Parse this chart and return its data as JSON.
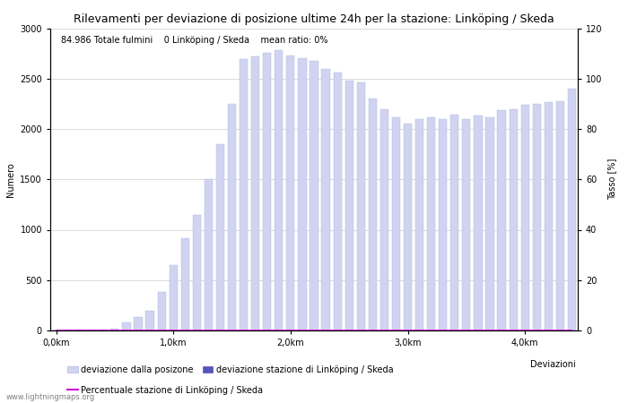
{
  "title": "Rilevamenti per deviazione di posizione ultime 24h per la stazione: Linköping / Skeda",
  "ylabel_left": "Numero",
  "ylabel_right": "Tasso [%]",
  "annotation": "84.986 Totale fulmini    0 Linköping / Skeda    mean ratio: 0%",
  "xlim_min": -0.5,
  "xlim_max": 44.5,
  "ylim_left": [
    0,
    3000
  ],
  "ylim_right": [
    0,
    120
  ],
  "xtick_labels": [
    "0,0km",
    "1,0km",
    "2,0km",
    "3,0km",
    "4,0km"
  ],
  "xtick_positions": [
    0,
    10,
    20,
    30,
    40
  ],
  "ytick_left": [
    0,
    500,
    1000,
    1500,
    2000,
    2500,
    3000
  ],
  "ytick_right": [
    0,
    20,
    40,
    60,
    80,
    100,
    120
  ],
  "bar_color": "#d0d4f0",
  "bar_edge_color": "#b0b8e0",
  "station_bar_color": "#5555bb",
  "line_color": "#cc00cc",
  "background_color": "#ffffff",
  "grid_color": "#cccccc",
  "bar_values": [
    3,
    5,
    6,
    8,
    12,
    20,
    80,
    130,
    200,
    380,
    650,
    920,
    1150,
    1500,
    1850,
    2250,
    2690,
    2720,
    2760,
    2780,
    2730,
    2700,
    2680,
    2600,
    2560,
    2480,
    2460,
    2300,
    2200,
    2120,
    2050,
    2100,
    2120,
    2100,
    2140,
    2100,
    2130,
    2120,
    2190,
    2200,
    2240,
    2250,
    2270,
    2280,
    2400
  ],
  "station_values": [
    0,
    0,
    0,
    0,
    0,
    0,
    0,
    0,
    0,
    0,
    0,
    0,
    0,
    0,
    0,
    0,
    0,
    0,
    0,
    0,
    0,
    0,
    0,
    0,
    0,
    0,
    0,
    0,
    0,
    0,
    0,
    0,
    0,
    0,
    0,
    0,
    0,
    0,
    0,
    0,
    0,
    0,
    0,
    0,
    0
  ],
  "ratio_values": [
    0,
    0,
    0,
    0,
    0,
    0,
    0,
    0,
    0,
    0,
    0,
    0,
    0,
    0,
    0,
    0,
    0,
    0,
    0,
    0,
    0,
    0,
    0,
    0,
    0,
    0,
    0,
    0,
    0,
    0,
    0,
    0,
    0,
    0,
    0,
    0,
    0,
    0,
    0,
    0,
    0,
    0,
    0,
    0,
    0
  ],
  "legend_label_total": "deviazione dalla posizone",
  "legend_label_station": "deviazione stazione di Linköping / Skeda",
  "legend_label_line": "Percentuale stazione di Linköping / Skeda",
  "legend_label_title": "Deviazioni",
  "watermark": "www.lightningmaps.org",
  "title_fontsize": 9,
  "label_fontsize": 7,
  "tick_fontsize": 7,
  "annotation_fontsize": 7,
  "legend_fontsize": 7,
  "bar_width": 0.7
}
